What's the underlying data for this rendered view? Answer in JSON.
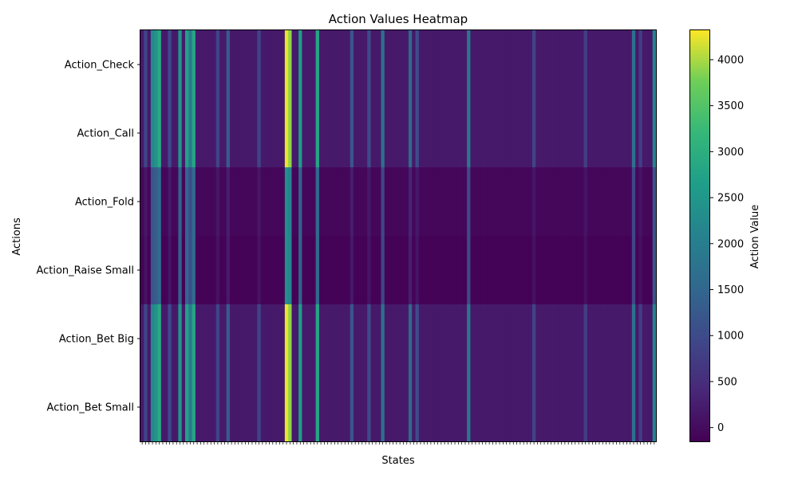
{
  "chart_data": {
    "type": "heatmap",
    "title": "Action Values Heatmap",
    "xlabel": "States",
    "ylabel": "Actions",
    "rows": [
      "Action_Check",
      "Action_Call",
      "Action_Fold",
      "Action_Raise Small",
      "Action_Bet Big",
      "Action_Bet Small"
    ],
    "x_tick_labels_visible": false,
    "n_states": 150,
    "colormap": "viridis",
    "color_range": [
      -150,
      4320
    ],
    "colorbar": {
      "label": "Action Value",
      "ticks": [
        0,
        500,
        1000,
        1500,
        2000,
        2500,
        3000,
        3500,
        4000
      ]
    },
    "column_profile_note": "per-state value shared across rows",
    "high_value_states": [
      {
        "state": 1,
        "value": 900
      },
      {
        "state": 3,
        "value": 2200
      },
      {
        "state": 4,
        "value": 2400
      },
      {
        "state": 5,
        "value": 2900
      },
      {
        "state": 8,
        "value": 1000
      },
      {
        "state": 11,
        "value": 2500
      },
      {
        "state": 13,
        "value": 2700
      },
      {
        "state": 14,
        "value": 1900
      },
      {
        "state": 15,
        "value": 2800
      },
      {
        "state": 22,
        "value": 900
      },
      {
        "state": 25,
        "value": 1300
      },
      {
        "state": 34,
        "value": 900
      },
      {
        "state": 42,
        "value": 4250
      },
      {
        "state": 43,
        "value": 3900
      },
      {
        "state": 46,
        "value": 2600
      },
      {
        "state": 51,
        "value": 2800
      },
      {
        "state": 61,
        "value": 1200
      },
      {
        "state": 66,
        "value": 1000
      },
      {
        "state": 70,
        "value": 1700
      },
      {
        "state": 78,
        "value": 1500
      },
      {
        "state": 80,
        "value": 1000
      },
      {
        "state": 95,
        "value": 1800
      },
      {
        "state": 114,
        "value": 900
      },
      {
        "state": 129,
        "value": 800
      },
      {
        "state": 143,
        "value": 1700
      },
      {
        "state": 145,
        "value": 800
      },
      {
        "state": 149,
        "value": 2100
      }
    ],
    "base_value": 200,
    "dip_rows_values": {
      "Action_Fold": -60,
      "Action_Raise Small": -120
    }
  }
}
